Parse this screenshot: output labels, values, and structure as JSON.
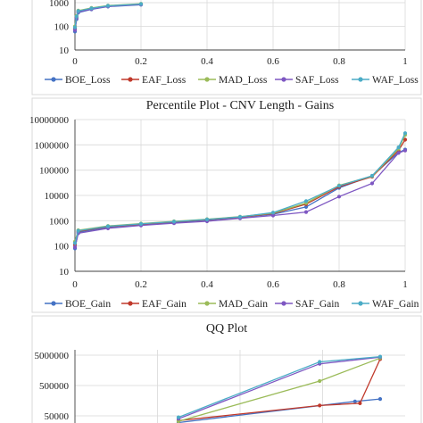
{
  "chart_data": [
    {
      "type": "line",
      "title": "",
      "x_ticks": [
        "0",
        "0.2",
        "0.4",
        "0.6",
        "0.8",
        "1"
      ],
      "y_ticks": [
        "10",
        "100",
        "1000"
      ],
      "y_scale": "log",
      "xlim": [
        0,
        1
      ],
      "grid": true,
      "legend_position": "bottom",
      "x": [
        0,
        0.005,
        0.01,
        0.05,
        0.1,
        0.2
      ],
      "series": [
        {
          "name": "BOE_Loss",
          "color": "#4472c4",
          "values": [
            60,
            200,
            380,
            520,
            680,
            820
          ]
        },
        {
          "name": "EAF_Loss",
          "color": "#c0392b",
          "values": [
            80,
            240,
            420,
            560,
            720,
            860
          ]
        },
        {
          "name": "MAD_Loss",
          "color": "#9bbb59",
          "values": [
            100,
            280,
            460,
            600,
            760,
            900
          ]
        },
        {
          "name": "SAF_Loss",
          "color": "#7e57c2",
          "values": [
            70,
            220,
            400,
            540,
            700,
            840
          ]
        },
        {
          "name": "WAF_Loss",
          "color": "#4bacc6",
          "values": [
            90,
            260,
            440,
            580,
            740,
            880
          ]
        }
      ]
    },
    {
      "type": "line",
      "title": "Percentile Plot - CNV Length - Gains",
      "x_ticks": [
        "0",
        "0.2",
        "0.4",
        "0.6",
        "0.8",
        "1"
      ],
      "y_ticks": [
        "10",
        "100",
        "1000",
        "10000",
        "100000",
        "1000000",
        "10000000"
      ],
      "y_scale": "log",
      "xlim": [
        0,
        1
      ],
      "ylim": [
        10,
        10000000
      ],
      "grid": true,
      "legend_position": "bottom",
      "x": [
        0,
        0.01,
        0.1,
        0.2,
        0.3,
        0.4,
        0.5,
        0.6,
        0.7,
        0.8,
        0.9,
        0.98,
        1
      ],
      "series": [
        {
          "name": "BOE_Gain",
          "color": "#4472c4",
          "values": [
            80,
            350,
            550,
            700,
            850,
            1050,
            1350,
            1800,
            3500,
            20000,
            60000,
            500000,
            650000
          ]
        },
        {
          "name": "EAF_Gain",
          "color": "#c0392b",
          "values": [
            110,
            380,
            580,
            730,
            900,
            1100,
            1400,
            1900,
            4500,
            22000,
            55000,
            600000,
            1600000
          ]
        },
        {
          "name": "MAD_Gain",
          "color": "#9bbb59",
          "values": [
            150,
            420,
            620,
            770,
            950,
            1150,
            1450,
            2000,
            5000,
            25000,
            58000,
            700000,
            2500000
          ]
        },
        {
          "name": "SAF_Gain",
          "color": "#7e57c2",
          "values": [
            90,
            320,
            500,
            650,
            800,
            950,
            1250,
            1600,
            2200,
            9000,
            30000,
            480000,
            600000
          ]
        },
        {
          "name": "WAF_Gain",
          "color": "#4bacc6",
          "values": [
            130,
            400,
            600,
            750,
            920,
            1120,
            1420,
            2100,
            6000,
            24000,
            60000,
            800000,
            2900000
          ]
        }
      ]
    },
    {
      "type": "line",
      "title": "QQ Plot",
      "y_ticks": [
        "50000",
        "500000",
        "5000000"
      ],
      "y_scale": "log",
      "grid": true,
      "series": [
        {
          "name": "",
          "color": "#4472c4",
          "points": [
            [
              0.6,
              30000
            ],
            [
              0.95,
              150000
            ],
            [
              1.0,
              180000
            ]
          ]
        },
        {
          "name": "",
          "color": "#c0392b",
          "points": [
            [
              0.6,
              35000
            ],
            [
              0.88,
              110000
            ],
            [
              0.96,
              130000
            ],
            [
              1.0,
              3700000
            ]
          ]
        },
        {
          "name": "",
          "color": "#9bbb59",
          "points": [
            [
              0.6,
              33000
            ],
            [
              0.88,
              700000
            ],
            [
              1.0,
              4000000
            ]
          ]
        },
        {
          "name": "",
          "color": "#7e57c2",
          "points": [
            [
              0.6,
              40000
            ],
            [
              0.88,
              2600000
            ],
            [
              1.0,
              4300000
            ]
          ]
        },
        {
          "name": "",
          "color": "#4bacc6",
          "points": [
            [
              0.6,
              45000
            ],
            [
              0.88,
              3000000
            ],
            [
              1.0,
              4500000
            ]
          ]
        }
      ]
    }
  ]
}
